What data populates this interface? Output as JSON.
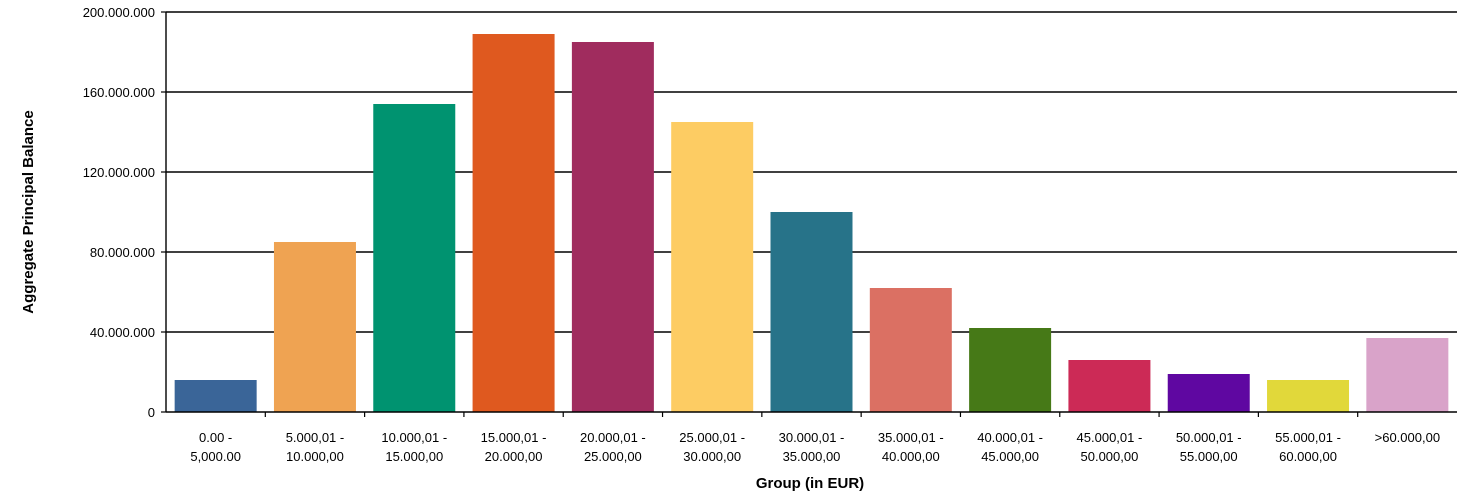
{
  "chart_data": {
    "type": "bar",
    "title": "",
    "xlabel": "Group (in EUR)",
    "ylabel": "Aggregate Principal Balance",
    "ylim": [
      0,
      200000000
    ],
    "grid": true,
    "legend": "none",
    "y_ticks": [
      {
        "value": 0,
        "label": "0"
      },
      {
        "value": 40000000,
        "label": "40.000.000"
      },
      {
        "value": 80000000,
        "label": "80.000.000"
      },
      {
        "value": 120000000,
        "label": "120.000.000"
      },
      {
        "value": 160000000,
        "label": "160.000.000"
      },
      {
        "value": 200000000,
        "label": "200.000.000"
      }
    ],
    "categories": [
      [
        "0.00 -",
        "5,000.00"
      ],
      [
        "5.000,01 -",
        "10.000,00"
      ],
      [
        "10.000,01 -",
        "15.000,00"
      ],
      [
        "15.000,01 -",
        "20.000,00"
      ],
      [
        "20.000,01 -",
        "25.000,00"
      ],
      [
        "25.000,01 -",
        "30.000,00"
      ],
      [
        "30.000,01 -",
        "35.000,00"
      ],
      [
        "35.000,01 -",
        "40.000,00"
      ],
      [
        "40.000,01 -",
        "45.000,00"
      ],
      [
        "45.000,01 -",
        "50.000,00"
      ],
      [
        "50.000,01 -",
        "55.000,00"
      ],
      [
        "55.000,01 -",
        "60.000,00"
      ],
      [
        ">60.000,00"
      ]
    ],
    "values": [
      16000000,
      85000000,
      154000000,
      189000000,
      185000000,
      145000000,
      100000000,
      62000000,
      42000000,
      26000000,
      19000000,
      16000000,
      37000000
    ],
    "colors": [
      "#3a6598",
      "#efa352",
      "#009370",
      "#df591f",
      "#a02c5e",
      "#fdcc63",
      "#277389",
      "#db7063",
      "#467917",
      "#cc2a56",
      "#5f07a1",
      "#e1d83a",
      "#d9a3c9"
    ],
    "grid_color": "#000000"
  }
}
